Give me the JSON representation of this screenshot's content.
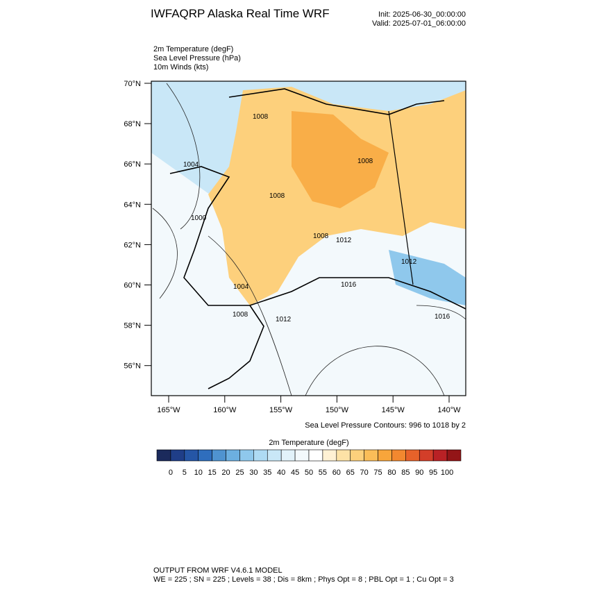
{
  "header": {
    "title": "IWFAQRP Alaska Real Time WRF",
    "init": "Init: 2025-06-30_00:00:00",
    "valid": "Valid: 2025-07-01_06:00:00"
  },
  "fields": [
    "2m Temperature   (degF)",
    "Sea Level Pressure   (hPa)",
    "10m Winds   (kts)"
  ],
  "map": {
    "lat_labels": [
      "70°N",
      "68°N",
      "66°N",
      "64°N",
      "62°N",
      "60°N",
      "58°N",
      "56°N"
    ],
    "lon_labels": [
      "165°W",
      "160°W",
      "155°W",
      "150°W",
      "145°W",
      "140°W"
    ],
    "contour_labels": [
      1008,
      1004,
      1008,
      1008,
      1000,
      1008,
      1012,
      1012,
      1004,
      1016,
      1008,
      1012,
      1016
    ],
    "contour_note": "Sea Level Pressure Contours: 996 to 1018 by 2"
  },
  "colorbar": {
    "title": "2m Temperature  (degF)",
    "ticks": [
      0,
      5,
      10,
      15,
      20,
      25,
      30,
      35,
      40,
      45,
      50,
      55,
      60,
      65,
      70,
      75,
      80,
      85,
      90,
      95,
      100
    ],
    "colors": [
      "#1b2a5c",
      "#1f3e88",
      "#2556a6",
      "#2f6ebd",
      "#4f93d0",
      "#6cafe0",
      "#8fc8ec",
      "#aedaf3",
      "#c9e7f7",
      "#e2f2fa",
      "#f3f9fc",
      "#ffffff",
      "#fff1d4",
      "#fde2a6",
      "#fdd07c",
      "#fbbd58",
      "#f8a53b",
      "#f2882f",
      "#e7622a",
      "#d33e29",
      "#b92125",
      "#931517"
    ]
  },
  "footer": {
    "line1": "OUTPUT FROM WRF V4.6.1 MODEL",
    "line2": "WE = 225 ; SN = 225 ; Levels = 38 ; Dis = 8km ; Phys Opt = 8 ; PBL Opt = 1 ; Cu Opt = 3"
  }
}
